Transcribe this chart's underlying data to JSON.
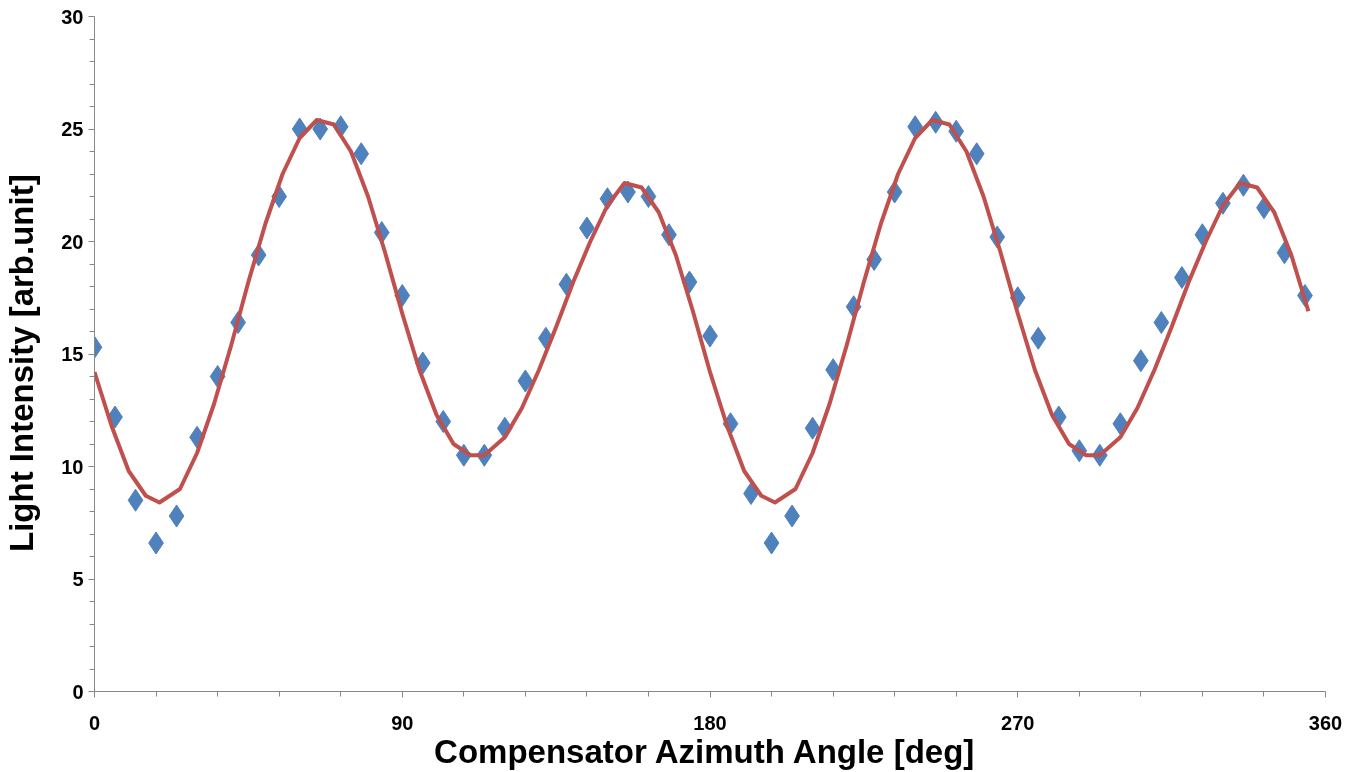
{
  "chart_data": {
    "type": "scatter",
    "xlabel": "Compensator Azimuth Angle  [deg]",
    "ylabel": "Light Intensity   [arb.unit]",
    "xlim": [
      0,
      360
    ],
    "xticks": [
      0,
      90,
      180,
      270,
      360
    ],
    "ylim": [
      0,
      30
    ],
    "yticks": [
      0,
      5,
      10,
      15,
      20,
      25,
      30
    ],
    "grid": false,
    "series": [
      {
        "marker": "diamond",
        "color": "#4f81bd",
        "x": [
          0,
          6,
          12,
          18,
          24,
          30,
          36,
          42,
          48,
          54,
          60,
          66,
          72,
          78,
          84,
          90,
          96,
          102,
          108,
          114,
          120,
          126,
          132,
          138,
          144,
          150,
          156,
          162,
          168,
          174,
          180,
          186,
          192,
          198,
          204,
          210,
          216,
          222,
          228,
          234,
          240,
          246,
          252,
          258,
          264,
          270,
          276,
          282,
          288,
          294,
          300,
          306,
          312,
          318,
          324,
          330,
          336,
          342,
          348,
          354
        ],
        "values": [
          15.3,
          12.2,
          8.5,
          6.6,
          7.8,
          11.3,
          14.0,
          16.4,
          19.4,
          22.0,
          25.0,
          25.0,
          25.1,
          23.9,
          20.4,
          17.6,
          14.6,
          12.0,
          10.5,
          10.5,
          11.7,
          13.8,
          15.7,
          18.1,
          20.6,
          21.9,
          22.2,
          22.0,
          20.3,
          18.2,
          15.8,
          11.9,
          8.8,
          6.6,
          7.8,
          11.7,
          14.3,
          17.1,
          19.2,
          22.2,
          25.1,
          25.3,
          24.9,
          23.9,
          20.2,
          17.5,
          15.7,
          12.2,
          10.7,
          10.5,
          11.9,
          14.7,
          16.4,
          18.4,
          20.3,
          21.7,
          22.5,
          21.5,
          19.5,
          17.6
        ]
      },
      {
        "type": "line",
        "marker": "none",
        "line_style": "solid",
        "color": "#c0504d",
        "x": [
          0,
          5,
          10,
          15,
          19,
          25,
          30,
          35,
          40,
          45,
          50,
          55,
          60,
          65,
          70,
          75,
          80,
          85,
          90,
          95,
          100,
          105,
          110,
          114,
          120,
          125,
          130,
          135,
          140,
          145,
          150,
          155,
          160,
          165,
          170,
          175,
          180,
          185,
          190,
          195,
          199,
          205,
          210,
          215,
          220,
          225,
          230,
          235,
          240,
          245,
          250,
          255,
          260,
          265,
          270,
          275,
          280,
          285,
          290,
          294,
          300,
          305,
          310,
          315,
          320,
          325,
          330,
          335,
          340,
          345,
          350,
          355
        ],
        "values": [
          14.2,
          11.8,
          9.8,
          8.7,
          8.4,
          9.0,
          10.6,
          12.8,
          15.4,
          18.2,
          20.8,
          23.0,
          24.6,
          25.4,
          25.2,
          24.0,
          22.0,
          19.5,
          16.8,
          14.3,
          12.3,
          11.0,
          10.5,
          10.5,
          11.3,
          12.6,
          14.3,
          16.2,
          18.2,
          20.0,
          21.6,
          22.6,
          22.4,
          21.3,
          19.4,
          16.9,
          14.2,
          11.8,
          9.8,
          8.7,
          8.4,
          9.0,
          10.6,
          12.8,
          15.4,
          18.2,
          20.8,
          23.0,
          24.6,
          25.4,
          25.2,
          24.0,
          22.0,
          19.5,
          16.8,
          14.3,
          12.3,
          11.0,
          10.5,
          10.5,
          11.3,
          12.6,
          14.3,
          16.2,
          18.2,
          20.0,
          21.6,
          22.6,
          22.4,
          21.3,
          19.4,
          16.9
        ]
      }
    ]
  }
}
